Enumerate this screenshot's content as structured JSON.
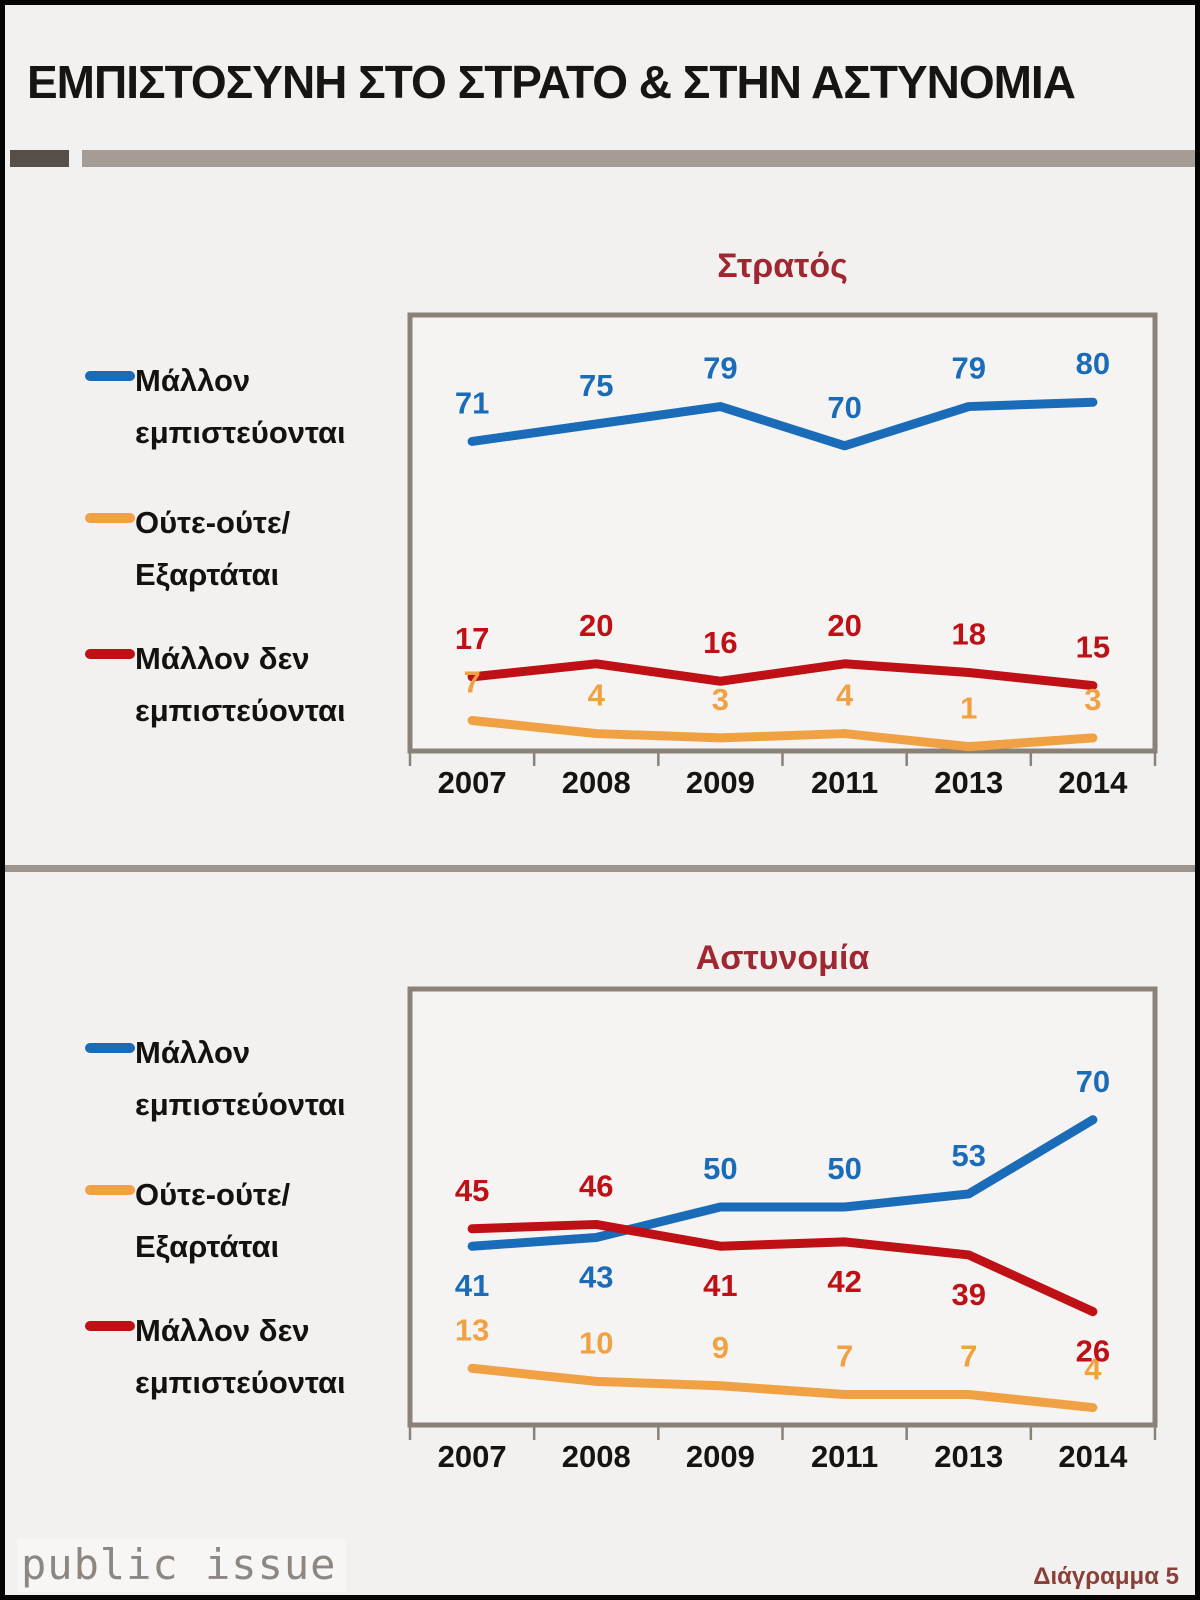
{
  "page": {
    "title": "ΕΜΠΙΣΤΟΣΥΝΗ ΣΤΟ ΣΤΡΑΤΟ & ΣΤΗΝ ΑΣΤΥΝΟΜΙΑ",
    "footer_logo": "public issue",
    "footer_note": "Διάγραμμα 5"
  },
  "legend": {
    "items": [
      {
        "id": "trust",
        "label_line1": "Μάλλον",
        "label_line2": "εμπιστεύονται",
        "color": "#1b6cb8"
      },
      {
        "id": "neither",
        "label_line1": "Ούτε-ούτε/",
        "label_line2": "Εξαρτάται",
        "color": "#f0a143"
      },
      {
        "id": "distrust",
        "label_line1": "Μάλλον δεν",
        "label_line2": "εμπιστεύονται",
        "color": "#be1015"
      }
    ]
  },
  "chart_data": [
    {
      "type": "line",
      "title": "Στρατός",
      "categories": [
        "2007",
        "2008",
        "2009",
        "2011",
        "2013",
        "2014"
      ],
      "ylim": [
        0,
        100
      ],
      "grid": false,
      "legend_position": "left",
      "plot_border_color": "#8a8178",
      "series": [
        {
          "name": "Μάλλον εμπιστεύονται",
          "color": "#1b6cb8",
          "values": [
            71,
            75,
            79,
            70,
            79,
            80
          ],
          "label_side": [
            "above",
            "above",
            "above",
            "above",
            "above",
            "above"
          ]
        },
        {
          "name": "Ούτε-ούτε/Εξαρτάται",
          "color": "#f0a143",
          "values": [
            7,
            4,
            3,
            4,
            1,
            3
          ],
          "label_side": [
            "above",
            "above",
            "above",
            "above",
            "above",
            "above"
          ]
        },
        {
          "name": "Μάλλον δεν εμπιστεύονται",
          "color": "#be1015",
          "values": [
            17,
            20,
            16,
            20,
            18,
            15
          ],
          "label_side": [
            "above",
            "above",
            "above",
            "above",
            "above",
            "above"
          ]
        }
      ]
    },
    {
      "type": "line",
      "title": "Αστυνομία",
      "categories": [
        "2007",
        "2008",
        "2009",
        "2011",
        "2013",
        "2014"
      ],
      "ylim": [
        0,
        100
      ],
      "grid": false,
      "legend_position": "left",
      "plot_border_color": "#8a8178",
      "series": [
        {
          "name": "Μάλλον εμπιστεύονται",
          "color": "#1b6cb8",
          "values": [
            41,
            43,
            50,
            50,
            53,
            70
          ],
          "label_side": [
            "below",
            "below",
            "above",
            "above",
            "above",
            "above"
          ]
        },
        {
          "name": "Ούτε-ούτε/Εξαρτάται",
          "color": "#f0a143",
          "values": [
            13,
            10,
            9,
            7,
            7,
            4
          ],
          "label_side": [
            "above",
            "above",
            "above",
            "above",
            "above",
            "above"
          ]
        },
        {
          "name": "Μάλλον δεν εμπιστεύονται",
          "color": "#be1015",
          "values": [
            45,
            46,
            41,
            42,
            39,
            26
          ],
          "label_side": [
            "above",
            "above",
            "below",
            "below",
            "below",
            "below"
          ]
        }
      ]
    }
  ]
}
